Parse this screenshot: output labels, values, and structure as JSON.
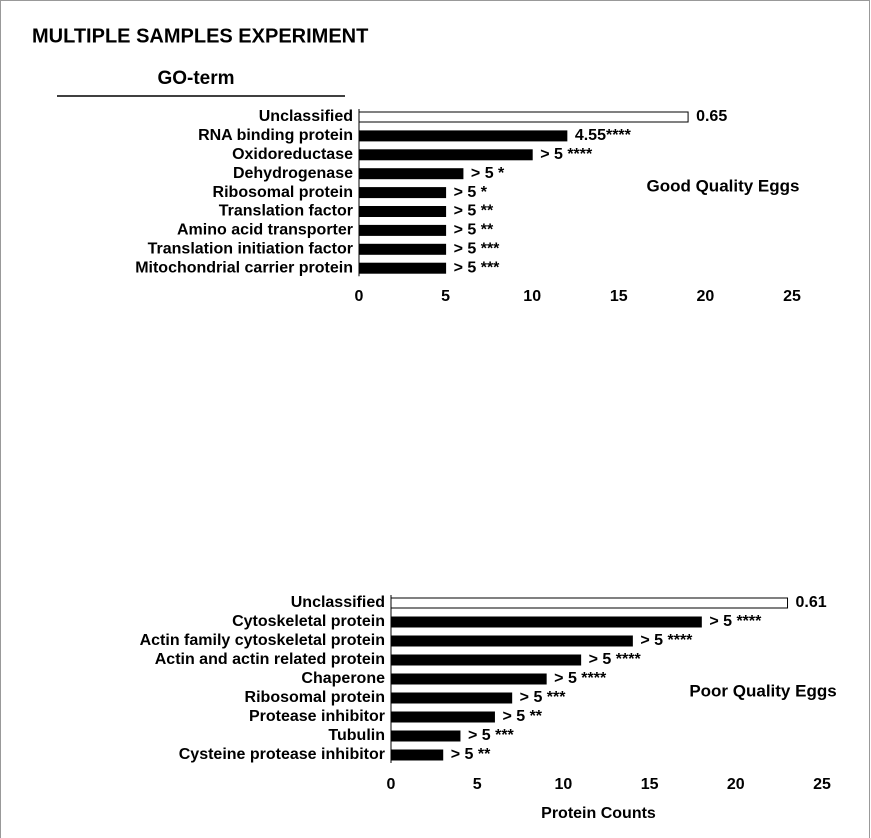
{
  "title": "MULTIPLE SAMPLES EXPERIMENT",
  "column_header": "GO-term",
  "chart_data": [
    {
      "type": "bar",
      "orientation": "horizontal",
      "label": "Good Quality Eggs",
      "categories": [
        "Unclassified",
        "RNA binding protein",
        "Oxidoreductase",
        "Dehydrogenase",
        "Ribosomal protein",
        "Translation factor",
        "Amino acid transporter",
        "Translation initiation factor",
        "Mitochondrial carrier protein"
      ],
      "values": [
        19,
        12,
        10,
        6,
        5,
        5,
        5,
        5,
        5
      ],
      "colors": [
        "#ffffff",
        "#000000",
        "#000000",
        "#000000",
        "#000000",
        "#000000",
        "#000000",
        "#000000",
        "#000000"
      ],
      "annotations": [
        "0.65",
        "4.55****",
        "> 5 ****",
        "> 5 *",
        "> 5 *",
        "> 5 **",
        "> 5 **",
        "> 5 ***",
        "> 5 ***"
      ],
      "xlim": [
        0,
        25
      ],
      "xticks": [
        0,
        5,
        10,
        15,
        20,
        25
      ]
    },
    {
      "type": "bar",
      "orientation": "horizontal",
      "label": "Poor Quality Eggs",
      "xlabel": "Protein Counts",
      "categories": [
        "Unclassified",
        "Cytoskeletal protein",
        "Actin family cytoskeletal protein",
        "Actin and actin related protein",
        "Chaperone",
        "Ribosomal protein",
        "Protease inhibitor",
        "Tubulin",
        "Cysteine protease inhibitor"
      ],
      "values": [
        23,
        18,
        14,
        11,
        9,
        7,
        6,
        4,
        3
      ],
      "colors": [
        "#ffffff",
        "#000000",
        "#000000",
        "#000000",
        "#000000",
        "#000000",
        "#000000",
        "#000000",
        "#000000"
      ],
      "annotations": [
        "0.61",
        "> 5 ****",
        "> 5 ****",
        "> 5 ****",
        "> 5 ****",
        "> 5 ***",
        "> 5 **",
        "> 5 ***",
        "> 5 **"
      ],
      "xlim": [
        0,
        25
      ],
      "xticks": [
        0,
        5,
        10,
        15,
        20,
        25
      ]
    }
  ]
}
